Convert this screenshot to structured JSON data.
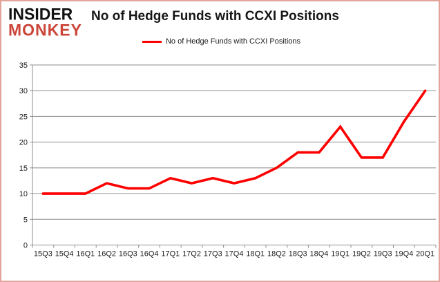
{
  "logo": {
    "line1": "INSIDER",
    "line2": "MONKEY"
  },
  "header": {
    "title": "No of Hedge Funds with CCXI Positions"
  },
  "legend": {
    "label": "No of Hedge Funds with CCXI Positions"
  },
  "colors": {
    "line": "#ff0000",
    "grid": "#8c8c8c",
    "axis": "#8c8c8c",
    "tick_text": "#1a1a1a",
    "frame_border": "#e2a39d",
    "logo_black": "#111111",
    "logo_red": "#cb4539"
  },
  "chart_data": {
    "type": "line",
    "title": "No of Hedge Funds with CCXI Positions",
    "categories": [
      "15Q3",
      "15Q4",
      "16Q1",
      "16Q2",
      "16Q3",
      "16Q4",
      "17Q1",
      "17Q2",
      "17Q3",
      "17Q4",
      "18Q1",
      "18Q2",
      "18Q3",
      "18Q4",
      "19Q1",
      "19Q2",
      "19Q3",
      "19Q4",
      "20Q1"
    ],
    "values": [
      10,
      10,
      10,
      12,
      11,
      11,
      13,
      12,
      13,
      12,
      13,
      15,
      18,
      18,
      23,
      17,
      17,
      24,
      30
    ],
    "series_name": "No of Hedge Funds with CCXI Positions",
    "xlabel": "",
    "ylabel": "",
    "ylim": [
      0,
      35
    ],
    "y_ticks": [
      0,
      5,
      10,
      15,
      20,
      25,
      30,
      35
    ],
    "grid": true,
    "legend_position": "top-center"
  }
}
